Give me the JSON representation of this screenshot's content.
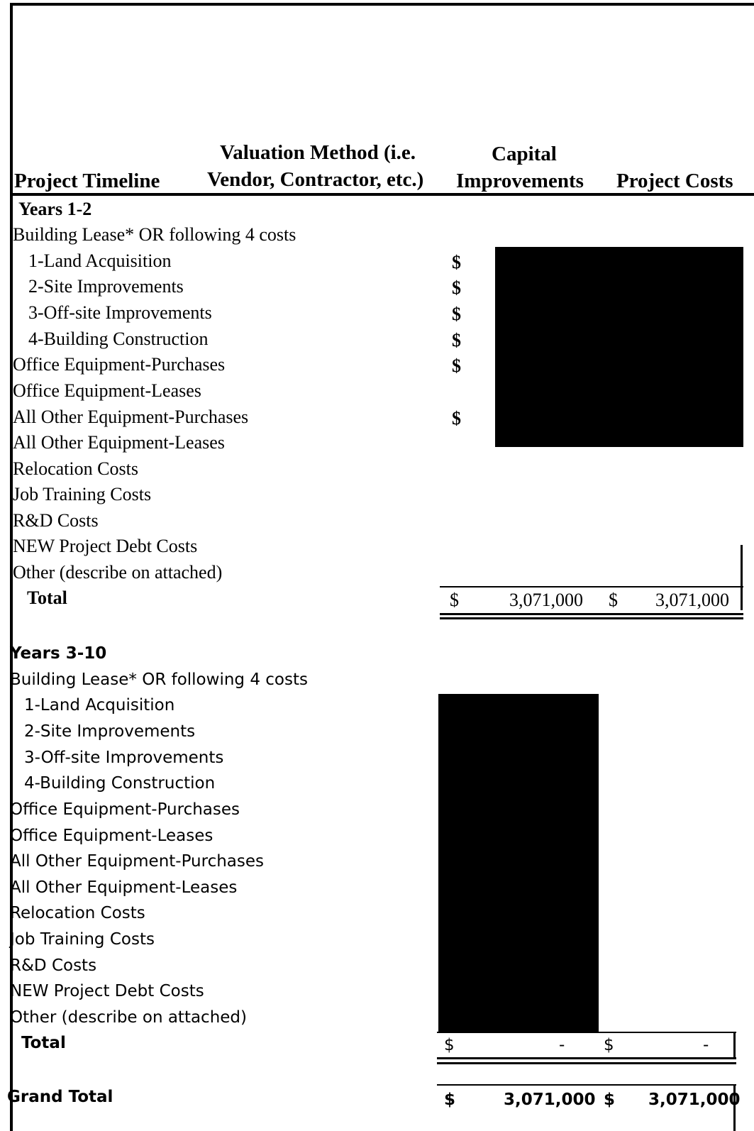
{
  "header": {
    "col1": "Project Timeline",
    "col2_line1": "Valuation Method (i.e.",
    "col2_line2": "Vendor, Contractor, etc.)",
    "col3_line1": "Capital",
    "col3_line2": "Improvements",
    "col4": "Project Costs"
  },
  "section1": {
    "title": "Years 1-2",
    "rows": [
      "Building Lease* OR following 4 costs",
      "1-Land Acquisition",
      "2-Site Improvements",
      "3-Off-site Improvements",
      "4-Building Construction",
      "Office Equipment-Purchases",
      "Office Equipment-Leases",
      "All Other Equipment-Purchases",
      "All Other Equipment-Leases",
      "Relocation Costs",
      "Job Training Costs",
      "R&D Costs",
      "NEW Project Debt Costs",
      "Other (describe on attached)"
    ],
    "dollar_sign": "$",
    "total_label": "Total",
    "total_capital": "3,071,000",
    "total_project": "3,071,000"
  },
  "section2": {
    "title": "Years 3-10",
    "rows": [
      "Building Lease* OR following 4 costs",
      "1-Land Acquisition",
      "2-Site Improvements",
      "3-Off-site Improvements",
      "4-Building Construction",
      "Office Equipment-Purchases",
      "Office Equipment-Leases",
      "All Other Equipment-Purchases",
      "All Other Equipment-Leases",
      "Relocation Costs",
      "Job Training Costs",
      "R&D Costs",
      "NEW Project Debt Costs",
      "Other (describe on attached)"
    ],
    "dollar_sign": "$",
    "total_label": "Total",
    "total_capital": "-",
    "total_project": "-"
  },
  "grand_total": {
    "label": "Grand Total",
    "dollar_sign": "$",
    "capital": "3,071,000",
    "project": "3,071,000"
  }
}
